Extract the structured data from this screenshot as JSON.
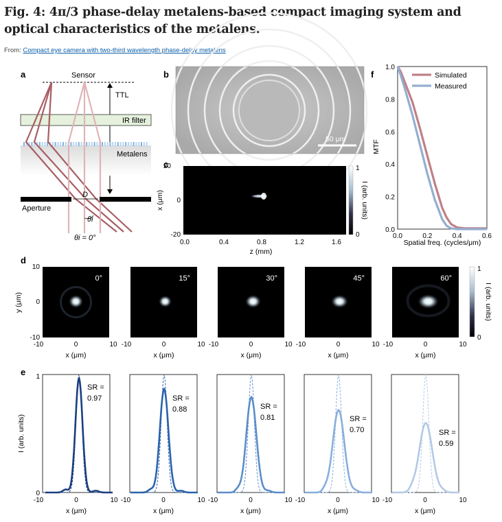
{
  "title": "Fig. 4: 4π/3 phase-delay metalens-based compact imaging system and optical characteristics of the metalens.",
  "from_prefix": "From: ",
  "from_link": "Compact eye camera with two-third wavelength phase-delay metalens",
  "panels": {
    "a": {
      "letter": "a",
      "sensor": "Sensor",
      "ttl": "TTL",
      "ir_filter": "IR filter",
      "metalens": "Metalens",
      "aperture": "Aperture",
      "d": "D",
      "theta_i": "θi",
      "theta0": "θi = 0°"
    },
    "b": {
      "letter": "b",
      "scale": "50 μm"
    },
    "c": {
      "letter": "c",
      "ylabel": "x (μm)",
      "xlabel": "z (mm)",
      "yticks": [
        "20",
        "0",
        "-20"
      ],
      "xticks": [
        "0.0",
        "0.4",
        "0.8",
        "1.2",
        "1.6"
      ],
      "cbar_label": "I (arb. units)",
      "cbar_ticks": [
        "1",
        "0"
      ]
    },
    "d": {
      "letter": "d",
      "ylabel": "y (μm)",
      "xlabel": "x (μm)",
      "yticks": [
        "10",
        "0",
        "-10"
      ],
      "xticks": [
        "-10",
        "0",
        "10"
      ],
      "angles": [
        "0°",
        "15°",
        "30°",
        "45°",
        "60°"
      ],
      "cbar_label": "I (arb. units)",
      "cbar_ticks": [
        "1",
        "0"
      ]
    },
    "e": {
      "letter": "e",
      "ylabel": "I (arb. units)",
      "xlabel": "x (μm)",
      "yticks": [
        "1",
        "0"
      ],
      "xticks": [
        "-10",
        "0",
        "10"
      ],
      "sr_label": "SR =",
      "sr": [
        "0.97",
        "0.88",
        "0.81",
        "0.70",
        "0.59"
      ],
      "colors": [
        "#1a3f80",
        "#2a62ad",
        "#5b8dc9",
        "#88aede",
        "#b3c9e6"
      ]
    },
    "f": {
      "letter": "f",
      "ylabel": "MTF",
      "xlabel": "Spatial freq. (cycles/μm)"
    }
  },
  "chart_data": {
    "type": "line",
    "title": "",
    "xlabel": "Spatial freq. (cycles/μm)",
    "ylabel": "MTF",
    "xlim": [
      0,
      0.6
    ],
    "ylim": [
      0,
      1
    ],
    "x_ticks": [
      "0.0",
      "0.2",
      "0.4",
      "0.6"
    ],
    "y_ticks": [
      "1.0",
      "0.8",
      "0.6",
      "0.4",
      "0.2",
      "0.0"
    ],
    "legend_position": "top-right",
    "series": [
      {
        "name": "Simulated",
        "color": "#c07f87",
        "x": [
          0,
          0.02,
          0.05,
          0.1,
          0.15,
          0.2,
          0.25,
          0.3,
          0.33,
          0.36,
          0.4,
          0.45,
          0.5,
          0.6
        ],
        "y": [
          1.0,
          0.97,
          0.9,
          0.78,
          0.62,
          0.45,
          0.28,
          0.13,
          0.07,
          0.03,
          0.01,
          0.005,
          0.005,
          0.005
        ]
      },
      {
        "name": "Measured",
        "color": "#94aed0",
        "x": [
          0,
          0.02,
          0.05,
          0.1,
          0.15,
          0.2,
          0.25,
          0.3,
          0.33,
          0.36,
          0.4,
          0.45,
          0.5,
          0.6
        ],
        "y": [
          1.0,
          0.95,
          0.86,
          0.7,
          0.52,
          0.34,
          0.18,
          0.06,
          0.02,
          0.005,
          0.0,
          0.0,
          0.0,
          0.0
        ]
      }
    ]
  }
}
